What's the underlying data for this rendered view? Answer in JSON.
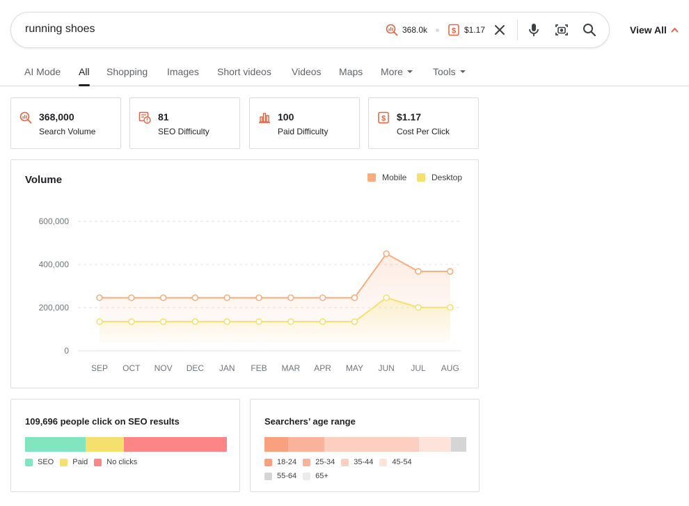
{
  "search": {
    "query": "running shoes",
    "volume_chip": "368.0k",
    "cpc_chip": "$1.17",
    "icons": [
      "volume-search-icon",
      "dollar-icon",
      "close-icon",
      "microphone-icon",
      "camera-search-icon",
      "search-icon"
    ]
  },
  "view_all": {
    "label": "View All",
    "icon": "chevron-up-icon"
  },
  "tabs": [
    {
      "label": "AI Mode",
      "active": false
    },
    {
      "label": "All",
      "active": true
    },
    {
      "label": "Shopping",
      "active": false
    },
    {
      "label": "Images",
      "active": false
    },
    {
      "label": "Short videos",
      "active": false
    },
    {
      "label": "Videos",
      "active": false
    },
    {
      "label": "Maps",
      "active": false
    },
    {
      "label": "More",
      "active": false,
      "dropdown": true
    },
    {
      "label": "Tools",
      "active": false,
      "dropdown": true
    }
  ],
  "stats": [
    {
      "value": "368,000",
      "label": "Search Volume",
      "icon": "volume-search-icon"
    },
    {
      "value": "81",
      "label": "SEO Difficulty",
      "icon": "seo-difficulty-icon"
    },
    {
      "value": "100",
      "label": "Paid Difficulty",
      "icon": "bar-chart-icon"
    },
    {
      "value": "$1.17",
      "label": "Cost Per Click",
      "icon": "dollar-icon"
    }
  ],
  "colors": {
    "accent": "#e8613c",
    "mobile": "#f9ac7e",
    "desktop": "#f5e06e",
    "seo": "#81e6c0",
    "paid": "#f5e06e",
    "noclicks": "#fc8585"
  },
  "volume_chart": {
    "title": "Volume",
    "legend_position": "top-right",
    "chart_data": {
      "type": "line",
      "title": "Volume",
      "xlabel": "",
      "ylabel": "",
      "categories": [
        "SEP",
        "OCT",
        "NOV",
        "DEC",
        "JAN",
        "FEB",
        "MAR",
        "APR",
        "MAY",
        "JUN",
        "JUL",
        "AUG"
      ],
      "y_ticks": [
        "600,000",
        "400,000",
        "200,000",
        "0"
      ],
      "ylim": [
        0,
        600000
      ],
      "grid": true,
      "series": [
        {
          "name": "Mobile",
          "color": "#f9ac7e",
          "values": [
            246000,
            246000,
            246000,
            246000,
            246000,
            246000,
            246000,
            246000,
            246000,
            450000,
            368000,
            368000
          ]
        },
        {
          "name": "Desktop",
          "color": "#f5e06e",
          "values": [
            135000,
            135000,
            135000,
            135000,
            135000,
            135000,
            135000,
            135000,
            135000,
            246000,
            201000,
            201000
          ]
        }
      ]
    }
  },
  "seo_clicks": {
    "title": "109,696 people click on SEO results",
    "segments": [
      {
        "name": "SEO",
        "share": 0.3,
        "color": "#81e6c0"
      },
      {
        "name": "Paid",
        "share": 0.19,
        "color": "#f5e06e"
      },
      {
        "name": "No clicks",
        "share": 0.51,
        "color": "#fc8585"
      }
    ]
  },
  "age_range": {
    "title": "Searchers’ age range",
    "segments": [
      {
        "name": "18-24",
        "share": 0.117,
        "color": "#f9a07f"
      },
      {
        "name": "25-34",
        "share": 0.179,
        "color": "#fab39a"
      },
      {
        "name": "35-44",
        "share": 0.469,
        "color": "#fccfc0"
      },
      {
        "name": "45-54",
        "share": 0.159,
        "color": "#fde3da"
      },
      {
        "name": "55-64",
        "share": 0.076,
        "color": "#d5d5d5"
      },
      {
        "name": "65+",
        "share": 0.0,
        "color": "#ebebeb"
      }
    ]
  }
}
